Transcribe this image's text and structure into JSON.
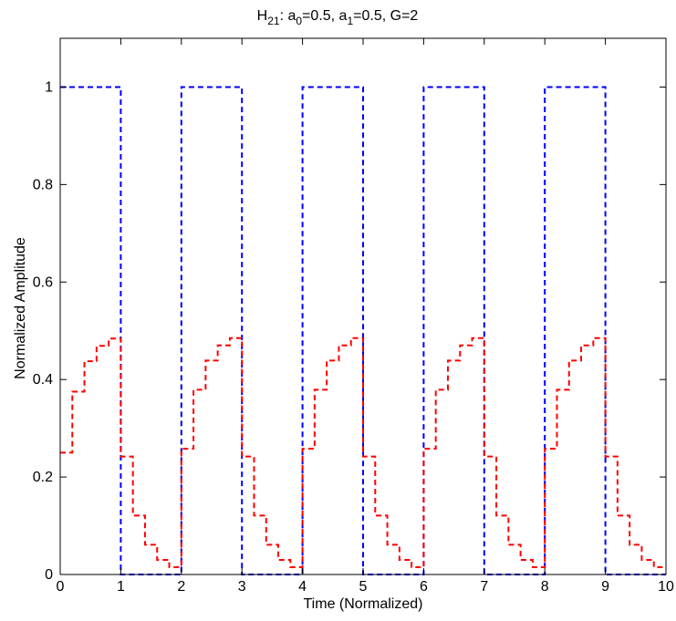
{
  "chart_data": {
    "type": "line",
    "title": {
      "main": "H",
      "main_sub": "21",
      "p1": ": a",
      "p1_sub": "0",
      "p2": "=0.5, a",
      "p2_sub": "1",
      "p3": "=0.5, G=2"
    },
    "xlabel": "Time (Normalized)",
    "ylabel": "Normalized Amplitude",
    "xlim": [
      0,
      10
    ],
    "ylim": [
      0,
      1.1
    ],
    "xticks": [
      "0",
      "1",
      "2",
      "3",
      "4",
      "5",
      "6",
      "7",
      "8",
      "9",
      "10"
    ],
    "yticks": [
      "0",
      "0.2",
      "0.4",
      "0.6",
      "0.8",
      "1"
    ],
    "grid": false,
    "box": true,
    "series": [
      {
        "color": "#0000ff",
        "style": "dashed",
        "x": [
          0,
          1,
          1,
          2,
          2,
          3,
          3,
          4,
          4,
          5,
          5,
          6,
          6,
          7,
          7,
          8,
          8,
          9,
          9,
          10
        ],
        "y": [
          1,
          1,
          0,
          0,
          1,
          1,
          0,
          0,
          1,
          1,
          0,
          0,
          1,
          1,
          0,
          0,
          1,
          1,
          0,
          0
        ]
      },
      {
        "color": "#ff0000",
        "style": "dashed",
        "x": [
          0,
          0.2,
          0.2,
          0.4,
          0.4,
          0.6,
          0.6,
          0.8,
          0.8,
          1.0,
          1.0,
          1.2,
          1.2,
          1.4,
          1.4,
          1.6,
          1.6,
          1.8,
          1.8,
          2.0,
          2.0,
          2.2,
          2.2,
          2.4,
          2.4,
          2.6,
          2.6,
          2.8,
          2.8,
          3.0,
          3.0,
          3.2,
          3.2,
          3.4,
          3.4,
          3.6,
          3.6,
          3.8,
          3.8,
          4.0,
          4.0,
          4.2,
          4.2,
          4.4,
          4.4,
          4.6,
          4.6,
          4.8,
          4.8,
          5.0,
          5.0,
          5.2,
          5.2,
          5.4,
          5.4,
          5.6,
          5.6,
          5.8,
          5.8,
          6.0,
          6.0,
          6.2,
          6.2,
          6.4,
          6.4,
          6.6,
          6.6,
          6.8,
          6.8,
          7.0,
          7.0,
          7.2,
          7.2,
          7.4,
          7.4,
          7.6,
          7.6,
          7.8,
          7.8,
          8.0,
          8.0,
          8.2,
          8.2,
          8.4,
          8.4,
          8.6,
          8.6,
          8.8,
          8.8,
          9.0,
          9.0,
          9.2,
          9.2,
          9.4,
          9.4,
          9.6,
          9.6,
          9.8,
          9.8,
          10.0
        ],
        "y": [
          0.25,
          0.25,
          0.375,
          0.375,
          0.4375,
          0.4375,
          0.469,
          0.469,
          0.484,
          0.484,
          0.242,
          0.242,
          0.121,
          0.121,
          0.061,
          0.061,
          0.03,
          0.03,
          0.015,
          0.015,
          0.258,
          0.258,
          0.379,
          0.379,
          0.439,
          0.439,
          0.47,
          0.47,
          0.485,
          0.485,
          0.242,
          0.242,
          0.121,
          0.121,
          0.061,
          0.061,
          0.03,
          0.03,
          0.015,
          0.015,
          0.258,
          0.258,
          0.379,
          0.379,
          0.439,
          0.439,
          0.47,
          0.47,
          0.485,
          0.485,
          0.242,
          0.242,
          0.121,
          0.121,
          0.061,
          0.061,
          0.03,
          0.03,
          0.015,
          0.015,
          0.258,
          0.258,
          0.379,
          0.379,
          0.439,
          0.439,
          0.47,
          0.47,
          0.485,
          0.485,
          0.242,
          0.242,
          0.121,
          0.121,
          0.061,
          0.061,
          0.03,
          0.03,
          0.015,
          0.015,
          0.258,
          0.258,
          0.379,
          0.379,
          0.439,
          0.439,
          0.47,
          0.47,
          0.485,
          0.485,
          0.242,
          0.242,
          0.121,
          0.121,
          0.061,
          0.061,
          0.03,
          0.03,
          0.015,
          0.015
        ]
      }
    ]
  }
}
